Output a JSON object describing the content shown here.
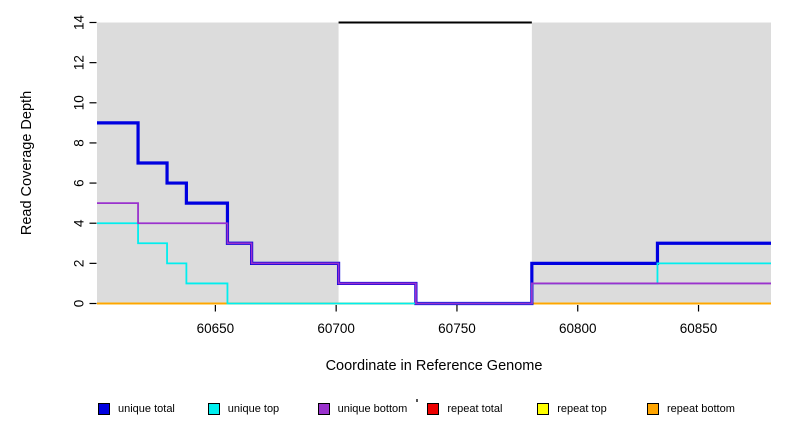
{
  "chart_data": {
    "type": "line",
    "subtype": "step",
    "title": "",
    "xlabel": "Coordinate in Reference Genome",
    "ylabel": "Read Coverage Depth",
    "xlim": [
      60601,
      60880
    ],
    "ylim": [
      0,
      14
    ],
    "x_ticks": [
      60650,
      60700,
      60750,
      60800,
      60850
    ],
    "y_ticks": [
      0,
      2,
      4,
      6,
      8,
      10,
      12,
      14
    ],
    "grid": false,
    "legend_position": "bottom",
    "background_color": "#ffffff",
    "shaded_regions": [
      {
        "name": "left-gray-region",
        "from": 60601,
        "to": 60701,
        "color": "#dcdcdc"
      },
      {
        "name": "right-gray-region",
        "from": 60781,
        "to": 60880,
        "color": "#dcdcdc"
      }
    ],
    "cap_line": {
      "y": 14,
      "from": 60701,
      "to": 60781,
      "color": "#000000",
      "width": 2
    },
    "breakpoints": [
      60601,
      60618,
      60630,
      60638,
      60655,
      60665,
      60701,
      60733,
      60781,
      60833,
      60880
    ],
    "series": [
      {
        "name": "repeat total",
        "color": "#ee0000",
        "width": 1.8,
        "values": [
          0,
          0,
          0,
          0,
          0,
          0,
          0,
          0,
          0,
          0
        ]
      },
      {
        "name": "repeat top",
        "color": "#ffff00",
        "width": 1.8,
        "values": [
          0,
          0,
          0,
          0,
          0,
          0,
          0,
          0,
          0,
          0
        ]
      },
      {
        "name": "repeat bottom",
        "color": "#ffa500",
        "width": 1.8,
        "values": [
          0,
          0,
          0,
          0,
          0,
          0,
          0,
          0,
          0,
          0
        ]
      },
      {
        "name": "unique total",
        "color": "#0000e0",
        "width": 3.2,
        "values": [
          9,
          7,
          6,
          5,
          3,
          2,
          1,
          0,
          2,
          3
        ]
      },
      {
        "name": "unique top",
        "color": "#00eeee",
        "width": 1.8,
        "values": [
          4,
          3,
          2,
          1,
          0,
          0,
          0,
          0,
          1,
          2
        ]
      },
      {
        "name": "unique bottom",
        "color": "#9a32cd",
        "width": 1.8,
        "values": [
          5,
          4,
          4,
          4,
          3,
          2,
          1,
          0,
          1,
          1
        ]
      }
    ],
    "legend": [
      {
        "label": "unique total",
        "color": "#0000e0"
      },
      {
        "label": "unique top",
        "color": "#00eeee"
      },
      {
        "label": "unique bottom",
        "color": "#9a32cd"
      },
      {
        "label": "repeat total",
        "color": "#ee0000"
      },
      {
        "label": "repeat top",
        "color": "#ffff00"
      },
      {
        "label": "repeat bottom",
        "color": "#ffa500"
      }
    ]
  }
}
